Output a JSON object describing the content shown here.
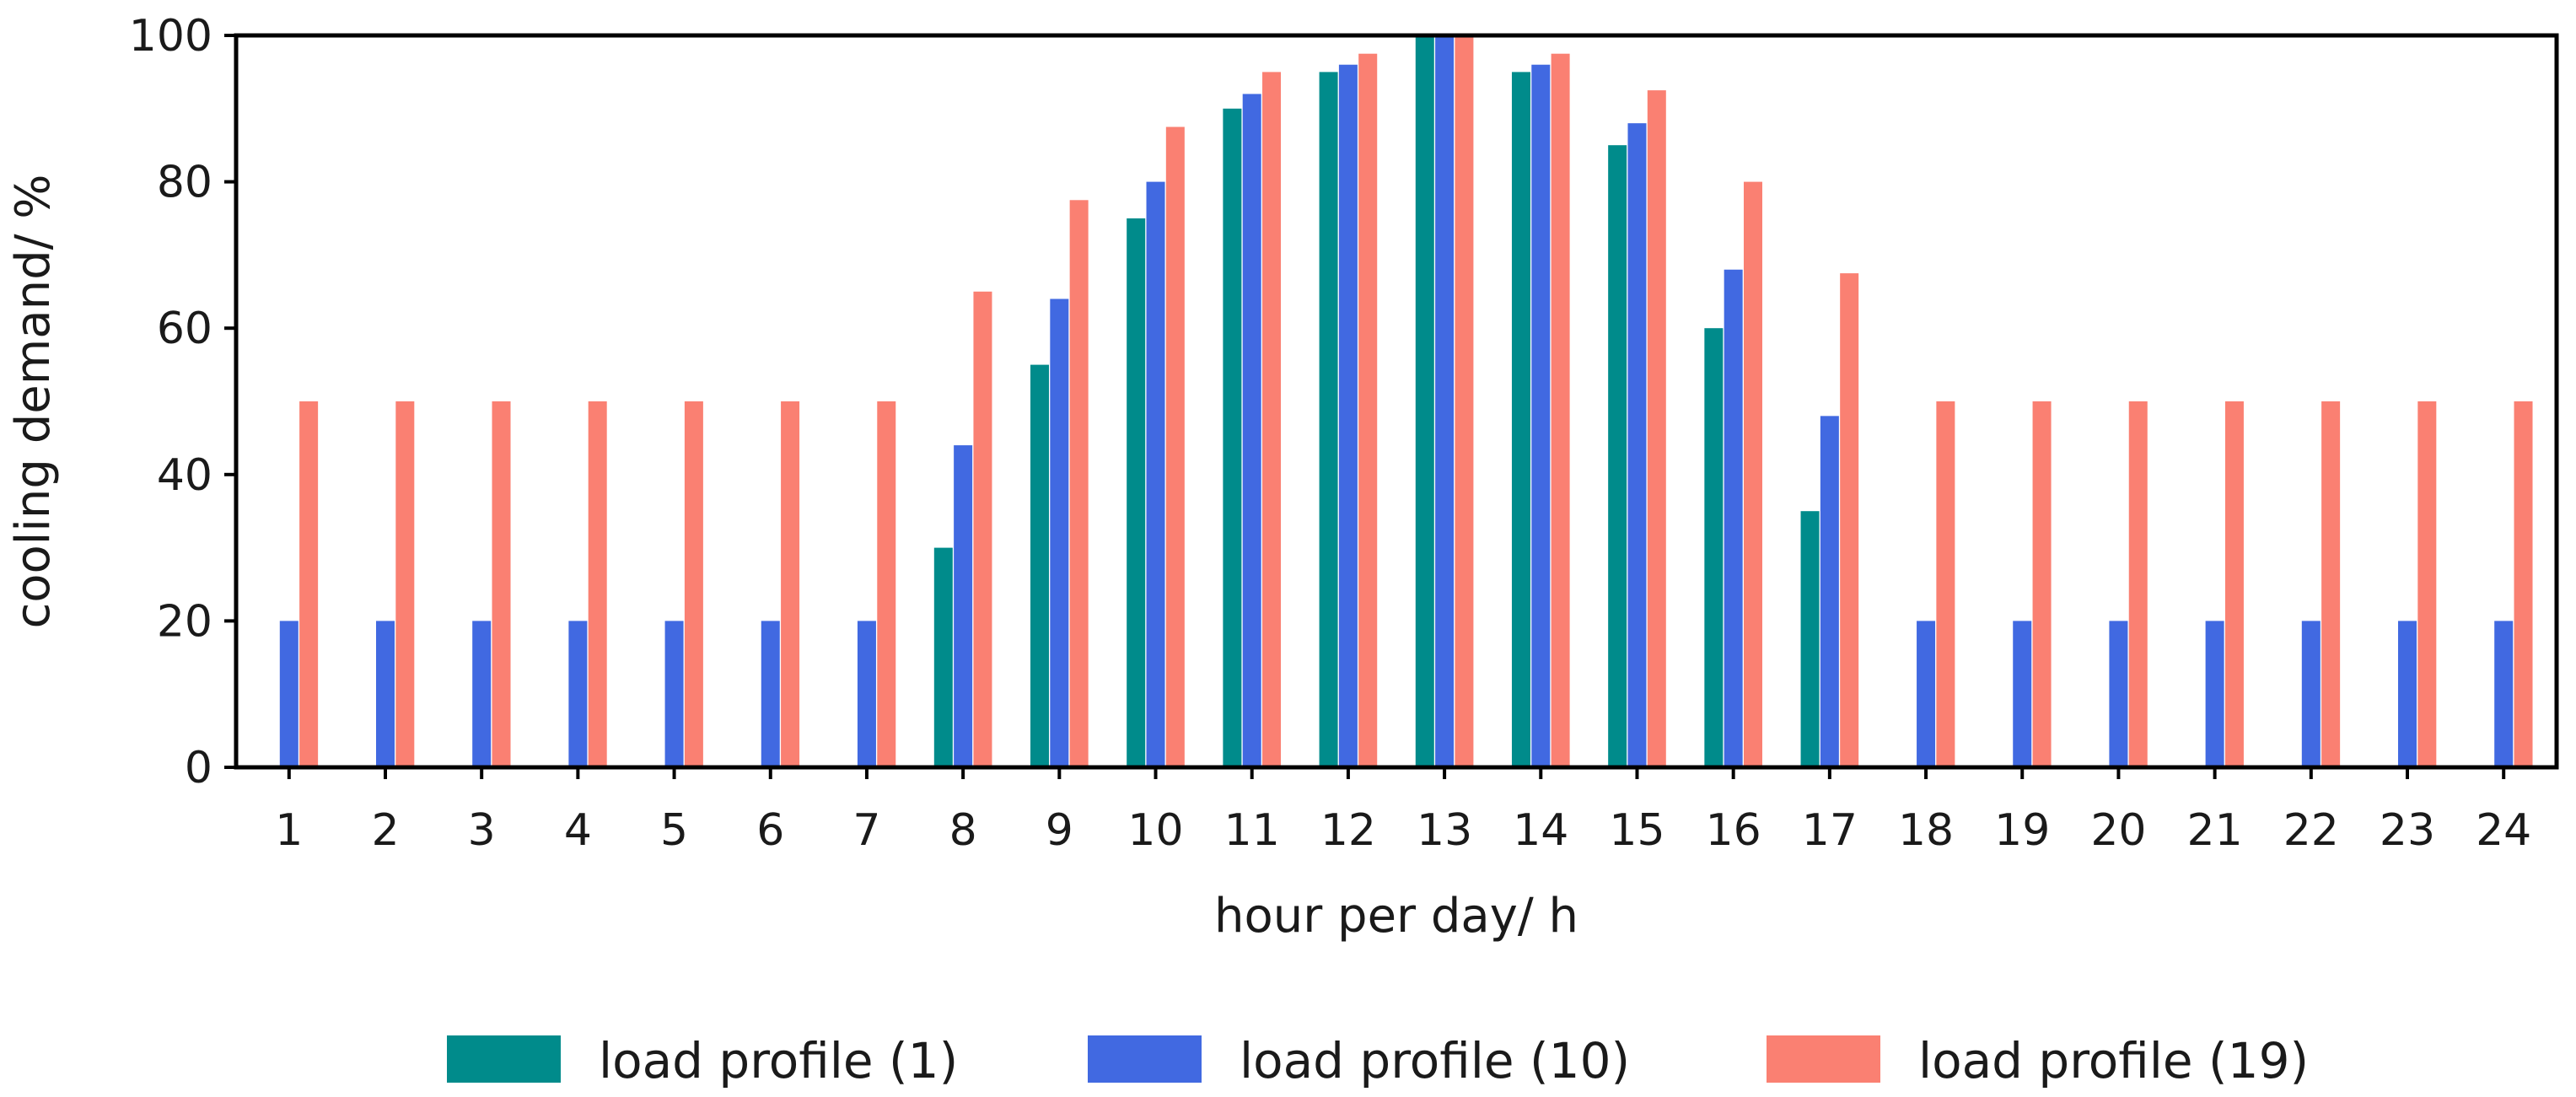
{
  "chart_data": {
    "type": "bar",
    "title": "",
    "xlabel": "hour per day/ h",
    "ylabel": "cooling demand/ %",
    "ylim": [
      0,
      100
    ],
    "yticks": [
      0,
      20,
      40,
      60,
      80,
      100
    ],
    "categories": [
      "1",
      "2",
      "3",
      "4",
      "5",
      "6",
      "7",
      "8",
      "9",
      "10",
      "11",
      "12",
      "13",
      "14",
      "15",
      "16",
      "17",
      "18",
      "19",
      "20",
      "21",
      "22",
      "23",
      "24"
    ],
    "series": [
      {
        "name": "load profile (1)",
        "color": "#008b8b",
        "values": [
          0,
          0,
          0,
          0,
          0,
          0,
          0,
          30,
          55,
          75,
          90,
          95,
          100,
          95,
          85,
          60,
          35,
          0,
          0,
          0,
          0,
          0,
          0,
          0
        ]
      },
      {
        "name": "load profile (10)",
        "color": "#4169e1",
        "values": [
          20,
          20,
          20,
          20,
          20,
          20,
          20,
          44,
          64,
          80,
          92,
          96,
          100,
          96,
          88,
          68,
          48,
          20,
          20,
          20,
          20,
          20,
          20,
          20
        ]
      },
      {
        "name": "load profile (19)",
        "color": "#fa8072",
        "values": [
          50,
          50,
          50,
          50,
          50,
          50,
          50,
          65,
          77.5,
          87.5,
          95,
          97.5,
          100,
          97.5,
          92.5,
          80,
          67.5,
          50,
          50,
          50,
          50,
          50,
          50,
          50
        ]
      }
    ],
    "legend_position": "bottom"
  }
}
